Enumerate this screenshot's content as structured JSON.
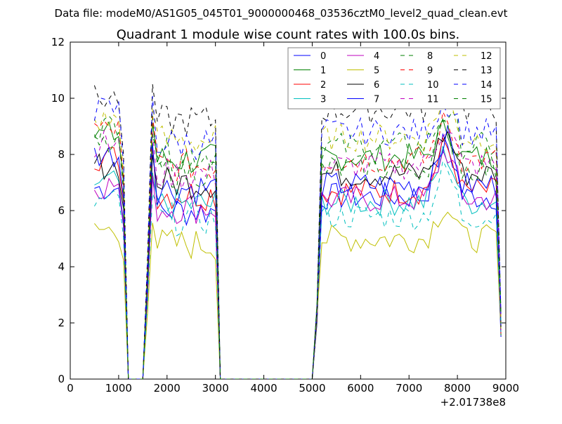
{
  "figure": {
    "suptitle": "Data file: modeM0/AS1G05_045T01_9000000468_03536cztM0_level2_quad_clean.evt"
  },
  "chart_data": {
    "type": "line",
    "title": "Quadrant 1 module wise count rates with 100.0s bins.",
    "xlabel": "",
    "ylabel": "",
    "x_offset_label": "+2.01738e8",
    "xlim": [
      0,
      9000
    ],
    "ylim": [
      0,
      12
    ],
    "xticks": [
      0,
      1000,
      2000,
      3000,
      4000,
      5000,
      6000,
      7000,
      8000,
      9000
    ],
    "yticks": [
      0,
      2,
      4,
      6,
      8,
      10,
      12
    ],
    "grid": false,
    "legend_position": "top-right",
    "legend_columns": 4,
    "segments": [
      {
        "x0": 500,
        "x1": 1100
      },
      {
        "x0": 1600,
        "x1": 3000
      },
      {
        "x0": 5200,
        "x1": 8800
      }
    ],
    "gap_points": [
      {
        "x": 1200,
        "y": 0
      },
      {
        "x": 1300,
        "y": 0
      },
      {
        "x": 1400,
        "y": 0
      },
      {
        "x": 1500,
        "y": 0
      },
      {
        "x": 3100,
        "y": 0
      },
      {
        "x": 5000,
        "y": 0
      }
    ],
    "edge_points": [
      {
        "x": 5100,
        "y": 2.0
      },
      {
        "x": 8900,
        "y": 1.5
      }
    ],
    "series": [
      {
        "name": "0",
        "color": "#0000ff",
        "dash": "solid",
        "levels": [
          6.8,
          6.0,
          6.5,
          8.6
        ]
      },
      {
        "name": "1",
        "color": "#008000",
        "dash": "solid",
        "levels": [
          8.7,
          7.8,
          7.9,
          9.0
        ]
      },
      {
        "name": "2",
        "color": "#ff0000",
        "dash": "solid",
        "levels": [
          7.9,
          6.6,
          6.7,
          8.4
        ]
      },
      {
        "name": "3",
        "color": "#00bfbf",
        "dash": "solid",
        "levels": [
          7.0,
          6.2,
          6.3,
          8.2
        ]
      },
      {
        "name": "4",
        "color": "#bf00bf",
        "dash": "solid",
        "levels": [
          6.9,
          6.1,
          6.4,
          8.3
        ]
      },
      {
        "name": "5",
        "color": "#bfbf00",
        "dash": "solid",
        "levels": [
          5.3,
          4.8,
          5.0,
          6.3
        ]
      },
      {
        "name": "6",
        "color": "#000000",
        "dash": "solid",
        "levels": [
          7.6,
          7.0,
          7.3,
          8.9
        ]
      },
      {
        "name": "7",
        "color": "#0000ff",
        "dash": "solid",
        "levels": [
          8.0,
          6.8,
          6.9,
          8.8
        ]
      },
      {
        "name": "8",
        "color": "#008000",
        "dash": "dashed",
        "levels": [
          9.0,
          8.0,
          8.3,
          9.6
        ]
      },
      {
        "name": "9",
        "color": "#ff0000",
        "dash": "dashed",
        "levels": [
          8.9,
          7.6,
          7.8,
          9.3
        ]
      },
      {
        "name": "10",
        "color": "#00bfbf",
        "dash": "dashed",
        "levels": [
          6.3,
          5.7,
          5.8,
          7.6
        ]
      },
      {
        "name": "11",
        "color": "#bf00bf",
        "dash": "dashed",
        "levels": [
          8.4,
          7.3,
          7.6,
          9.2
        ]
      },
      {
        "name": "12",
        "color": "#bfbf00",
        "dash": "dashed",
        "levels": [
          9.2,
          8.5,
          8.6,
          10.2
        ]
      },
      {
        "name": "13",
        "color": "#000000",
        "dash": "dashed",
        "levels": [
          10.0,
          9.2,
          9.6,
          10.9
        ]
      },
      {
        "name": "14",
        "color": "#0000ff",
        "dash": "dashed",
        "levels": [
          9.6,
          8.4,
          8.8,
          10.0
        ]
      },
      {
        "name": "15",
        "color": "#008000",
        "dash": "dashed",
        "levels": [
          8.3,
          7.4,
          7.5,
          9.0
        ]
      }
    ]
  }
}
